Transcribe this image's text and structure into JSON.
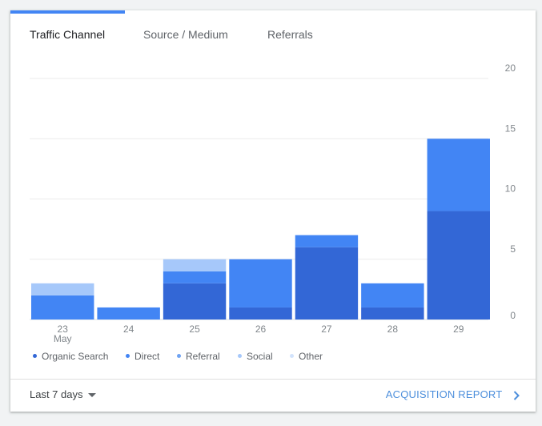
{
  "tabs": [
    {
      "label": "Traffic Channel",
      "active": true
    },
    {
      "label": "Source / Medium",
      "active": false
    },
    {
      "label": "Referrals",
      "active": false
    }
  ],
  "colors": {
    "accent": "#4285f4",
    "organic_search": "#3367d6",
    "direct": "#4285f4",
    "referral": "#6fa3f2",
    "social": "#a6c8fa",
    "other": "#d2e3fc",
    "link": "#4d8fdc"
  },
  "chart_data": {
    "type": "bar",
    "stacked": true,
    "categories": [
      "23",
      "24",
      "25",
      "26",
      "27",
      "28",
      "29"
    ],
    "x_sublabels": [
      "May",
      "",
      "",
      "",
      "",
      "",
      ""
    ],
    "series": [
      {
        "name": "Organic Search",
        "values": [
          0,
          0,
          3,
          1,
          6,
          1,
          9
        ]
      },
      {
        "name": "Direct",
        "values": [
          2,
          1,
          1,
          4,
          1,
          2,
          6
        ]
      },
      {
        "name": "Referral",
        "values": [
          0,
          0,
          0,
          0,
          0,
          0,
          0
        ]
      },
      {
        "name": "Social",
        "values": [
          1,
          0,
          1,
          0,
          0,
          0,
          0
        ]
      },
      {
        "name": "Other",
        "values": [
          0,
          0,
          0,
          0,
          0,
          0,
          0
        ]
      }
    ],
    "yticks": [
      0,
      5,
      10,
      15,
      20
    ],
    "ylim": [
      0,
      20
    ],
    "grid": true,
    "legend_position": "bottom-left"
  },
  "legend": [
    {
      "label": "Organic Search",
      "icon": "legend-dot-icon"
    },
    {
      "label": "Direct",
      "icon": "legend-dot-icon"
    },
    {
      "label": "Referral",
      "icon": "legend-dot-icon"
    },
    {
      "label": "Social",
      "icon": "legend-dot-icon"
    },
    {
      "label": "Other",
      "icon": "legend-dot-icon"
    }
  ],
  "footer": {
    "date_range": "Last 7 days",
    "date_range_icon": "caret-down-icon",
    "report_link": "ACQUISITION REPORT",
    "report_link_icon": "chevron-right-icon"
  }
}
